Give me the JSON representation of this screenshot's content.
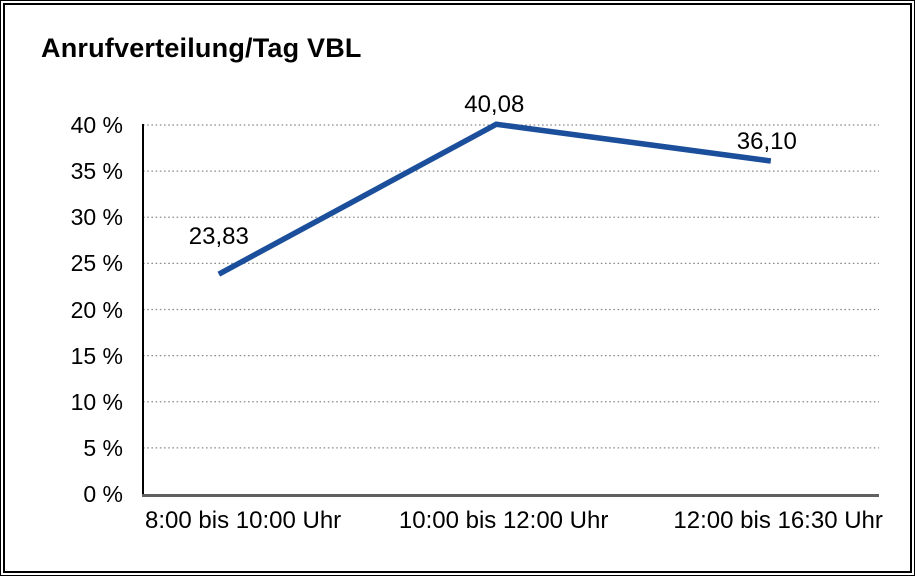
{
  "chart": {
    "title": "Anrufverteilung/Tag VBL"
  },
  "colors": {
    "line": "#1b4e9b",
    "grid": "#8c8c8c",
    "y_axis": "#000000",
    "x_axis": "#606060",
    "text": "#000000",
    "background": "#ffffff",
    "border": "#000000"
  },
  "chart_data": {
    "type": "line",
    "title": "Anrufverteilung/Tag VBL",
    "categories": [
      "8:00 bis 10:00 Uhr",
      "10:00 bis 12:00 Uhr",
      "12:00 bis 16:30 Uhr"
    ],
    "values": [
      23.83,
      40.08,
      36.1
    ],
    "point_labels": [
      "23,83",
      "40,08",
      "36,10"
    ],
    "xlabel": "",
    "ylabel": "",
    "ylim": [
      0,
      40
    ],
    "ytick_values": [
      0,
      5,
      10,
      15,
      20,
      25,
      30,
      35,
      40
    ],
    "ytick_labels": [
      "0 %",
      "5 %",
      "10 %",
      "15 %",
      "20 %",
      "25 %",
      "30 %",
      "35 %",
      "40 %"
    ],
    "grid": "horizontal-dotted",
    "legend": "none"
  }
}
